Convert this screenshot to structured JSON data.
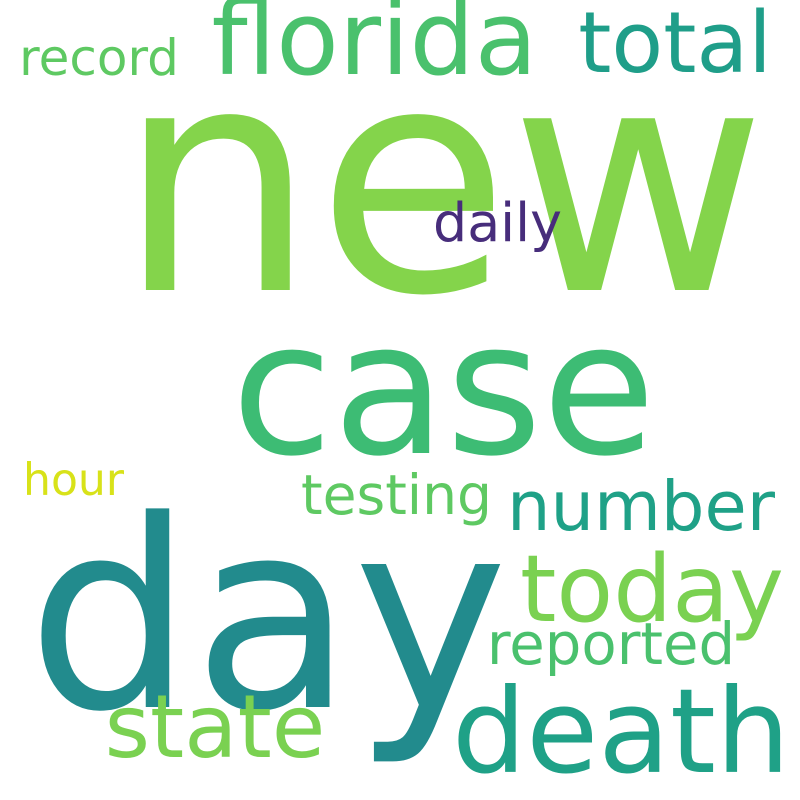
{
  "words": [
    {
      "key": "new",
      "text": "new",
      "color": "#84d44b"
    },
    {
      "key": "case",
      "text": "case",
      "color": "#3dbc74"
    },
    {
      "key": "day",
      "text": "day",
      "color": "#228b8d"
    },
    {
      "key": "florida",
      "text": "florida",
      "color": "#4ac16d"
    },
    {
      "key": "total",
      "text": "total",
      "color": "#1f9e89"
    },
    {
      "key": "record",
      "text": "record",
      "color": "#5ec962"
    },
    {
      "key": "daily",
      "text": "daily",
      "color": "#472d7b"
    },
    {
      "key": "number",
      "text": "number",
      "color": "#1fa187"
    },
    {
      "key": "today",
      "text": "today",
      "color": "#7ad151"
    },
    {
      "key": "testing",
      "text": "testing",
      "color": "#5ec962"
    },
    {
      "key": "hour",
      "text": "hour",
      "color": "#d8e219"
    },
    {
      "key": "reported",
      "text": "reported",
      "color": "#4ac16d"
    },
    {
      "key": "state",
      "text": "state",
      "color": "#7ad151"
    },
    {
      "key": "death",
      "text": "death",
      "color": "#1fa187"
    }
  ]
}
